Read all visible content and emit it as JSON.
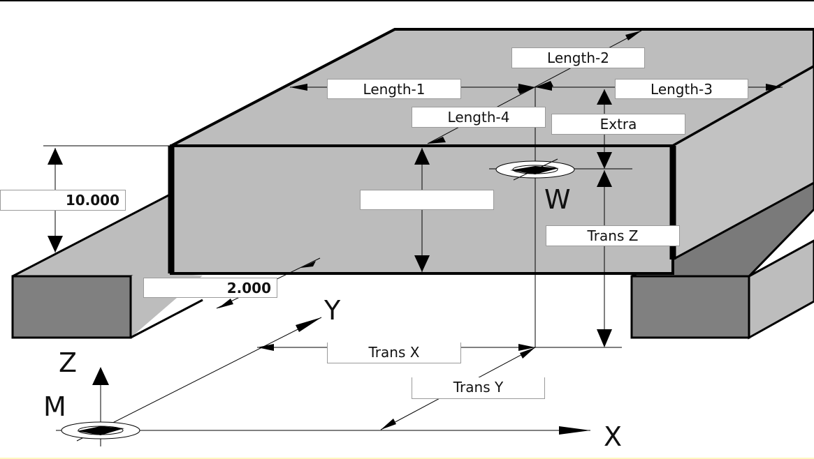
{
  "fields": {
    "length_1": "Length-1",
    "length_2": "Length-2",
    "length_3": "Length-3",
    "length_4": "Length-4",
    "extra": "Extra",
    "trans_z": "Trans Z",
    "trans_x": "Trans X",
    "trans_y": "Trans Y",
    "height_value": "10.000",
    "offset_value": "2.000",
    "thickness_value": ""
  },
  "axes": {
    "x": "X",
    "y": "Y",
    "z": "Z",
    "m": "M",
    "w": "W"
  },
  "colors": {
    "top_face": "#bdbdbd",
    "front_face": "#bcbcbc",
    "right_face": "#c2c2c2",
    "support_front": "#7f7f7f",
    "support_side": "#bdbdbd",
    "line": "#000000",
    "footer_bar": "#fff8c0"
  }
}
